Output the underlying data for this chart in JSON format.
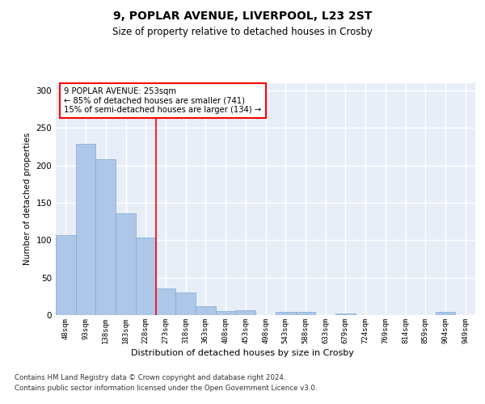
{
  "title1": "9, POPLAR AVENUE, LIVERPOOL, L23 2ST",
  "title2": "Size of property relative to detached houses in Crosby",
  "xlabel": "Distribution of detached houses by size in Crosby",
  "ylabel": "Number of detached properties",
  "categories": [
    "48sqm",
    "93sqm",
    "138sqm",
    "183sqm",
    "228sqm",
    "273sqm",
    "318sqm",
    "363sqm",
    "408sqm",
    "453sqm",
    "498sqm",
    "543sqm",
    "588sqm",
    "633sqm",
    "679sqm",
    "724sqm",
    "769sqm",
    "814sqm",
    "859sqm",
    "904sqm",
    "949sqm"
  ],
  "values": [
    107,
    229,
    208,
    136,
    104,
    36,
    30,
    12,
    5,
    7,
    0,
    4,
    4,
    0,
    2,
    0,
    0,
    0,
    0,
    4,
    0
  ],
  "bar_color": "#aec6e8",
  "bar_edge_color": "#7aaad0",
  "background_color": "#e8eef8",
  "red_line_x": 4.5,
  "annotation_text": "9 POPLAR AVENUE: 253sqm\n← 85% of detached houses are smaller (741)\n15% of semi-detached houses are larger (134) →",
  "footer1": "Contains HM Land Registry data © Crown copyright and database right 2024.",
  "footer2": "Contains public sector information licensed under the Open Government Licence v3.0.",
  "ylim": [
    0,
    310
  ],
  "yticks": [
    0,
    50,
    100,
    150,
    200,
    250,
    300
  ]
}
